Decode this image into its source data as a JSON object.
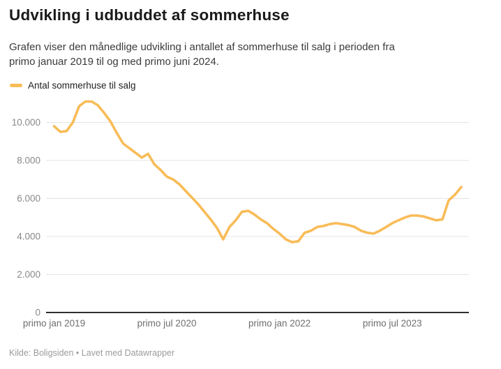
{
  "header": {
    "title": "Udvikling i udbuddet af sommerhuse",
    "subtitle_line1": "Grafen viser den månedlige udvikling i antallet af sommerhuse til salg i perioden fra",
    "subtitle_line2": "primo januar 2019 til og med primo juni 2024."
  },
  "legend": {
    "label": "Antal sommerhuse til salg",
    "color": "#f8bc58"
  },
  "footer": {
    "text": "Kilde: Boligsiden • Lavet med Datawrapper"
  },
  "colors": {
    "line": "#f8bc58",
    "gridline": "#e4e4e4",
    "axis_baseline": "#2f2f2f",
    "y_tick_text": "#898989",
    "x_tick_text": "#6e6e6e"
  },
  "chart_data": {
    "type": "line",
    "title": "Udvikling i udbuddet af sommerhuse",
    "xlabel": "",
    "ylabel": "",
    "grid": true,
    "legend_position": "top-left",
    "ylim": [
      0,
      11500
    ],
    "y_ticks": [
      0,
      2000,
      4000,
      6000,
      8000,
      10000
    ],
    "y_tick_labels": [
      "0",
      "2.000",
      "4.000",
      "6.000",
      "8.000",
      "10.000"
    ],
    "x_ticks": [
      {
        "label": "primo jan 2019",
        "month_index": 0
      },
      {
        "label": "primo jul 2020",
        "month_index": 18
      },
      {
        "label": "primo jan 2022",
        "month_index": 36
      },
      {
        "label": "primo jul 2023",
        "month_index": 54
      }
    ],
    "x": [
      "2019-01",
      "2019-02",
      "2019-03",
      "2019-04",
      "2019-05",
      "2019-06",
      "2019-07",
      "2019-08",
      "2019-09",
      "2019-10",
      "2019-11",
      "2019-12",
      "2020-01",
      "2020-02",
      "2020-03",
      "2020-04",
      "2020-05",
      "2020-06",
      "2020-07",
      "2020-08",
      "2020-09",
      "2020-10",
      "2020-11",
      "2020-12",
      "2021-01",
      "2021-02",
      "2021-03",
      "2021-04",
      "2021-05",
      "2021-06",
      "2021-07",
      "2021-08",
      "2021-09",
      "2021-10",
      "2021-11",
      "2021-12",
      "2022-01",
      "2022-02",
      "2022-03",
      "2022-04",
      "2022-05",
      "2022-06",
      "2022-07",
      "2022-08",
      "2022-09",
      "2022-10",
      "2022-11",
      "2022-12",
      "2023-01",
      "2023-02",
      "2023-03",
      "2023-04",
      "2023-05",
      "2023-06",
      "2023-07",
      "2023-08",
      "2023-09",
      "2023-10",
      "2023-11",
      "2023-12",
      "2024-01",
      "2024-02",
      "2024-03",
      "2024-04",
      "2024-05",
      "2024-06"
    ],
    "series": [
      {
        "name": "Antal sommerhuse til salg",
        "color": "#f8bc58",
        "values": [
          9800,
          9500,
          9550,
          10000,
          10850,
          11100,
          11100,
          10900,
          10500,
          10050,
          9450,
          8900,
          8650,
          8400,
          8150,
          8350,
          7800,
          7500,
          7150,
          7000,
          6750,
          6400,
          6050,
          5700,
          5300,
          4900,
          4450,
          3850,
          4500,
          4850,
          5300,
          5350,
          5150,
          4900,
          4700,
          4400,
          4150,
          3850,
          3700,
          3750,
          4200,
          4300,
          4500,
          4550,
          4650,
          4700,
          4650,
          4600,
          4500,
          4300,
          4200,
          4150,
          4300,
          4500,
          4700,
          4850,
          5000,
          5100,
          5100,
          5050,
          4950,
          4850,
          4900,
          5900,
          6200,
          6600
        ]
      }
    ]
  }
}
